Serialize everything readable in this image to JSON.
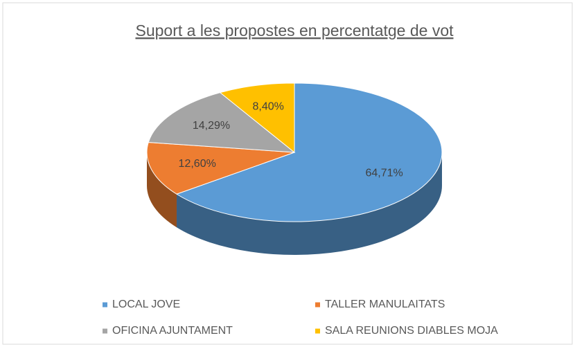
{
  "chart_data": {
    "type": "pie",
    "title": "Suport a les propostes en percentatge de vot",
    "categories": [
      "LOCAL JOVE",
      "TALLER MANULAITATS",
      "OFICINA AJUNTAMENT",
      "SALA REUNIONS DIABLES MOJA"
    ],
    "values": [
      64.71,
      12.6,
      14.29,
      8.4
    ],
    "value_labels": [
      "64,71%",
      "12,60%",
      "14,29%",
      "8,40%"
    ],
    "colors": [
      "#5b9bd5",
      "#ed7d31",
      "#a5a5a5",
      "#ffc000"
    ],
    "legend": "bottom"
  }
}
